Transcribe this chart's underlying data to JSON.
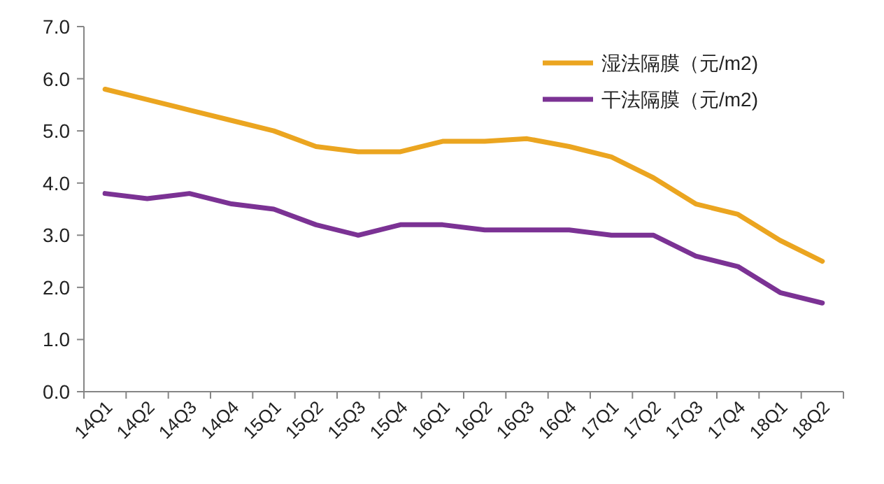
{
  "chart_data": {
    "type": "line",
    "categories": [
      "14Q1",
      "14Q2",
      "14Q3",
      "14Q4",
      "15Q1",
      "15Q2",
      "15Q3",
      "15Q4",
      "16Q1",
      "16Q2",
      "16Q3",
      "16Q4",
      "17Q1",
      "17Q2",
      "17Q3",
      "17Q4",
      "18Q1",
      "18Q2"
    ],
    "series": [
      {
        "name": "湿法隔膜（元/m2)",
        "color": "#eba520",
        "values": [
          5.8,
          5.6,
          5.4,
          5.2,
          5.0,
          4.7,
          4.6,
          4.6,
          4.8,
          4.8,
          4.85,
          4.7,
          4.5,
          4.1,
          3.6,
          3.4,
          2.9,
          2.5
        ]
      },
      {
        "name": "干法隔膜（元/m2)",
        "color": "#7b3294",
        "values": [
          3.8,
          3.7,
          3.8,
          3.6,
          3.5,
          3.2,
          3.0,
          3.2,
          3.2,
          3.1,
          3.1,
          3.1,
          3.0,
          3.0,
          2.6,
          2.4,
          1.9,
          1.7
        ]
      }
    ],
    "ylim": [
      0,
      7
    ],
    "yticks": [
      {
        "value": 0,
        "label": "0.0"
      },
      {
        "value": 1,
        "label": "1.0"
      },
      {
        "value": 2,
        "label": "2.0"
      },
      {
        "value": 3,
        "label": "3.0"
      },
      {
        "value": 4,
        "label": "4.0"
      },
      {
        "value": 5,
        "label": "5.0"
      },
      {
        "value": 6,
        "label": "6.0"
      },
      {
        "value": 7,
        "label": "7.0"
      }
    ],
    "legend": "top right",
    "grid": false,
    "marker": "none",
    "line_style": "solid"
  }
}
